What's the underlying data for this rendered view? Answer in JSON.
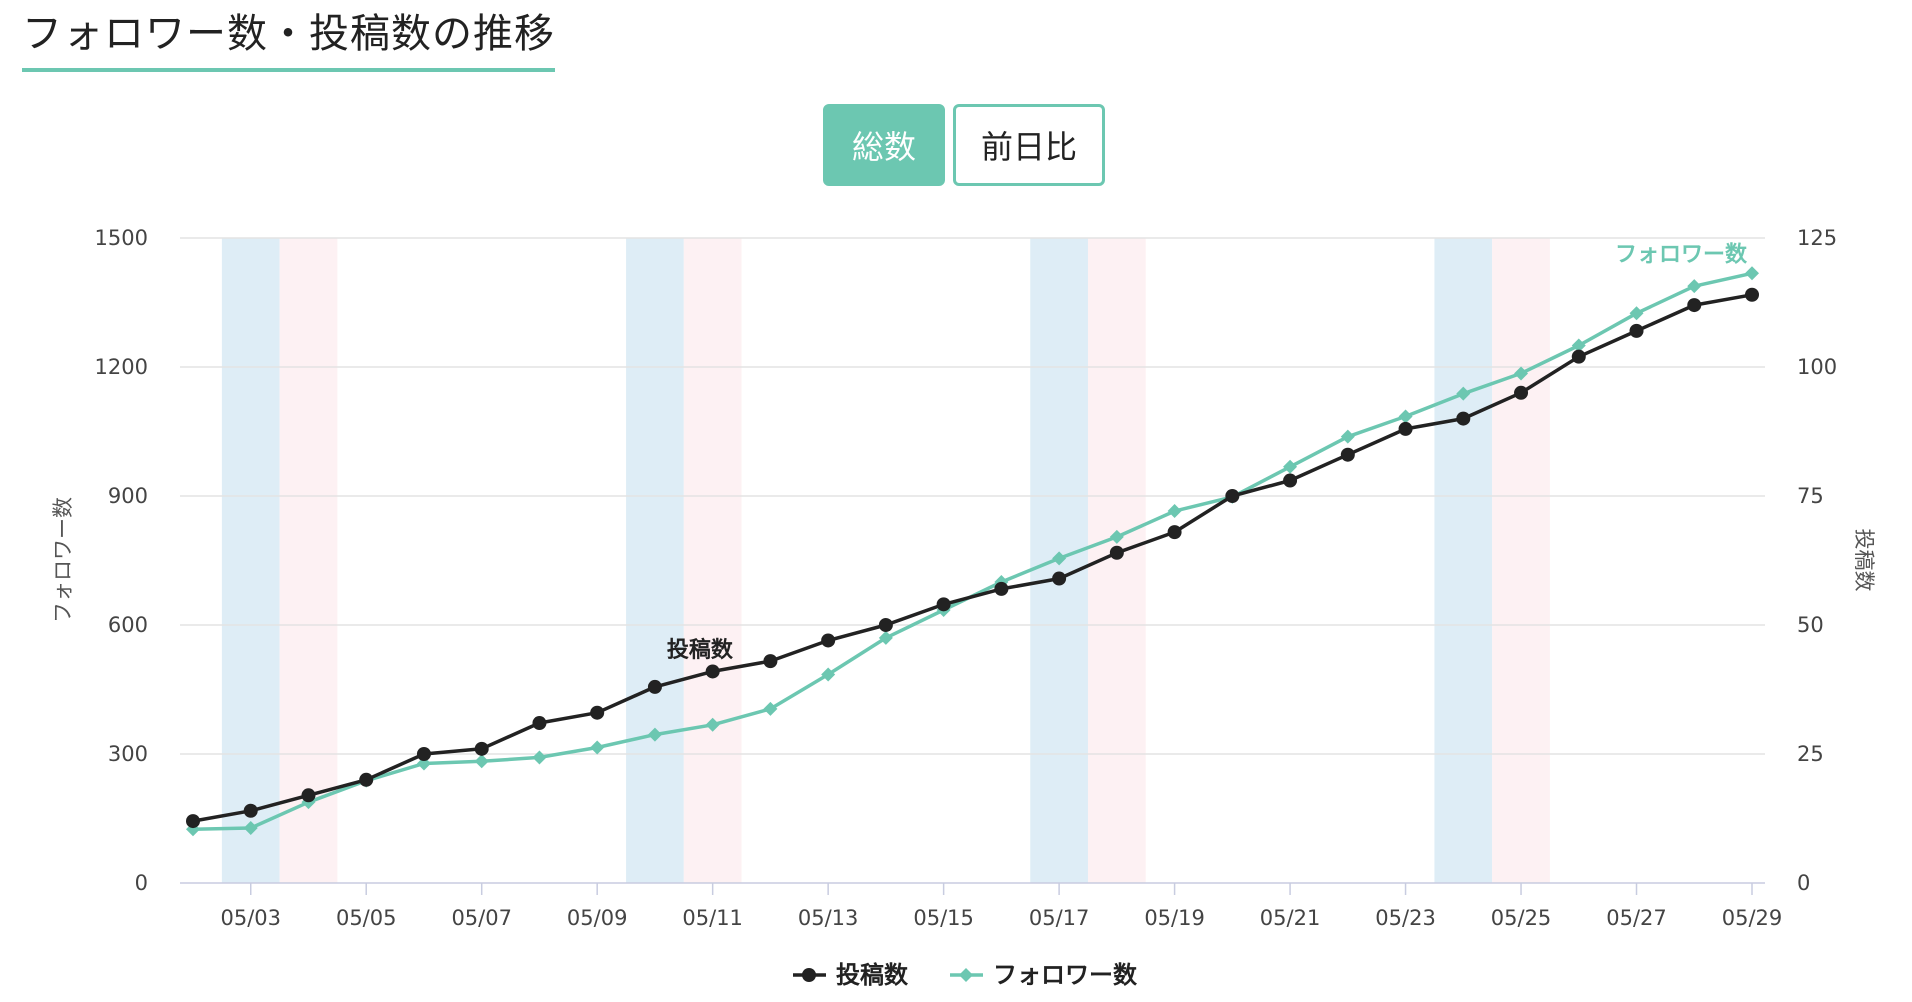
{
  "page": {
    "title": "フォロワー数・投稿数の推移"
  },
  "toggle": {
    "total_label": "総数",
    "diff_label": "前日比",
    "selected": "総数"
  },
  "colors": {
    "posts": "#222222",
    "followers": "#6cc7b1",
    "saturday_band": "#deedf6",
    "sunday_band": "#fdf1f3",
    "accent": "#6cc7b1"
  },
  "chart_data": {
    "type": "line",
    "x": [
      "05/02",
      "05/03",
      "05/04",
      "05/05",
      "05/06",
      "05/07",
      "05/08",
      "05/09",
      "05/10",
      "05/11",
      "05/12",
      "05/13",
      "05/14",
      "05/15",
      "05/16",
      "05/17",
      "05/18",
      "05/19",
      "05/20",
      "05/21",
      "05/22",
      "05/23",
      "05/24",
      "05/25",
      "05/26",
      "05/27",
      "05/28",
      "05/29"
    ],
    "x_tick_labels": [
      "05/03",
      "05/05",
      "05/07",
      "05/09",
      "05/11",
      "05/13",
      "05/15",
      "05/17",
      "05/19",
      "05/21",
      "05/23",
      "05/25",
      "05/27",
      "05/29"
    ],
    "weekend_dates": {
      "saturday": [
        "05/03",
        "05/10",
        "05/17",
        "05/24"
      ],
      "sunday": [
        "05/04",
        "05/11",
        "05/18",
        "05/25"
      ]
    },
    "y_left": {
      "label": "フォロワー数",
      "ylim": [
        0,
        1500
      ],
      "ticks": [
        0,
        300,
        600,
        900,
        1200,
        1500
      ]
    },
    "y_right": {
      "label": "投稿数",
      "ylim": [
        0,
        125
      ],
      "ticks": [
        0,
        25,
        50,
        75,
        100,
        125
      ]
    },
    "grid": true,
    "legend_position": "bottom-center",
    "series": [
      {
        "name": "投稿数",
        "axis": "right",
        "marker": "circle",
        "values": [
          12,
          14,
          17,
          20,
          25,
          26,
          31,
          33,
          38,
          41,
          43,
          47,
          50,
          54,
          57,
          59,
          64,
          68,
          75,
          78,
          83,
          88,
          90,
          95,
          102,
          107,
          112,
          114
        ]
      },
      {
        "name": "フォロワー数",
        "axis": "left",
        "marker": "diamond",
        "values": [
          125,
          128,
          188,
          238,
          278,
          283,
          292,
          315,
          345,
          368,
          405,
          485,
          570,
          635,
          700,
          755,
          805,
          865,
          898,
          968,
          1038,
          1085,
          1138,
          1185,
          1250,
          1325,
          1388,
          1418
        ]
      }
    ]
  }
}
